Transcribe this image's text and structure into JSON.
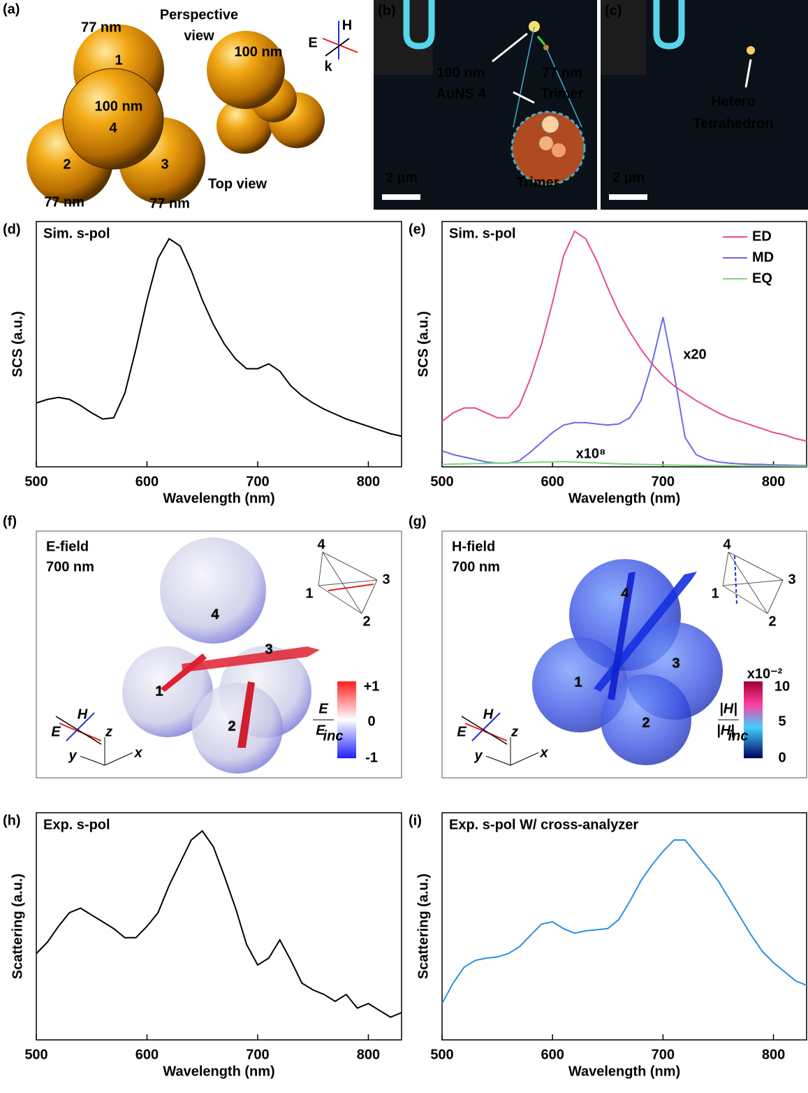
{
  "chart_data": [
    {
      "type": "line",
      "label": "(d)",
      "title": "Sim. s-pol",
      "x_label": "Wavelength (nm)",
      "y_label": "SCS (a.u.)",
      "x": [
        500,
        510,
        520,
        530,
        540,
        550,
        560,
        570,
        580,
        590,
        600,
        610,
        620,
        630,
        640,
        650,
        660,
        670,
        680,
        690,
        700,
        710,
        720,
        730,
        740,
        750,
        760,
        770,
        780,
        790,
        800,
        810,
        820,
        830
      ],
      "values": [
        0.26,
        0.275,
        0.283,
        0.275,
        0.25,
        0.22,
        0.195,
        0.2,
        0.3,
        0.48,
        0.68,
        0.85,
        0.93,
        0.9,
        0.8,
        0.68,
        0.58,
        0.5,
        0.44,
        0.4,
        0.4,
        0.42,
        0.39,
        0.33,
        0.29,
        0.26,
        0.235,
        0.215,
        0.195,
        0.18,
        0.165,
        0.15,
        0.135,
        0.125
      ],
      "color": "#000000",
      "xlim": [
        500,
        830
      ],
      "ylim": [
        0,
        1
      ],
      "xticks": [
        500,
        600,
        700,
        800
      ]
    },
    {
      "type": "line",
      "label": "(e)",
      "title": "Sim. s-pol",
      "x_label": "Wavelength (nm)",
      "y_label": "SCS (a.u.)",
      "x": [
        500,
        510,
        520,
        530,
        540,
        550,
        560,
        570,
        580,
        590,
        600,
        610,
        620,
        630,
        640,
        650,
        660,
        670,
        680,
        690,
        700,
        710,
        720,
        730,
        740,
        750,
        760,
        770,
        780,
        790,
        800,
        810,
        820,
        830
      ],
      "series": [
        {
          "name": "ED",
          "color": "#e8507a",
          "values": [
            0.185,
            0.22,
            0.24,
            0.24,
            0.22,
            0.2,
            0.2,
            0.25,
            0.36,
            0.5,
            0.67,
            0.86,
            0.96,
            0.93,
            0.84,
            0.73,
            0.63,
            0.55,
            0.48,
            0.42,
            0.37,
            0.33,
            0.3,
            0.27,
            0.245,
            0.22,
            0.2,
            0.185,
            0.17,
            0.155,
            0.14,
            0.13,
            0.115,
            0.105
          ]
        },
        {
          "name": "MD",
          "color": "#6a6ae8",
          "values": [
            0.065,
            0.05,
            0.04,
            0.03,
            0.02,
            0.015,
            0.015,
            0.025,
            0.06,
            0.1,
            0.14,
            0.17,
            0.18,
            0.18,
            0.175,
            0.17,
            0.175,
            0.2,
            0.27,
            0.42,
            0.61,
            0.38,
            0.12,
            0.05,
            0.03,
            0.02,
            0.015,
            0.012,
            0.01,
            0.01,
            0.008,
            0.007,
            0.006,
            0.005
          ]
        },
        {
          "name": "EQ",
          "color": "#7ed67e",
          "values": [
            0.01,
            0.011,
            0.012,
            0.013,
            0.014,
            0.015,
            0.016,
            0.017,
            0.018,
            0.019,
            0.02,
            0.021,
            0.02,
            0.018,
            0.016,
            0.014,
            0.012,
            0.011,
            0.01,
            0.009,
            0.008,
            0.007,
            0.006,
            0.006,
            0.005,
            0.005,
            0.005,
            0.004,
            0.004,
            0.004,
            0.004,
            0.003,
            0.003,
            0.003
          ]
        }
      ],
      "annotations": [
        {
          "text": "x20",
          "color": "#6a6ae8"
        },
        {
          "text": "x10⁸",
          "color": "#7ed67e"
        }
      ],
      "legend": "upper right",
      "xlim": [
        500,
        830
      ],
      "ylim": [
        0,
        1
      ],
      "xticks": [
        500,
        600,
        700,
        800
      ]
    },
    {
      "type": "line",
      "label": "(h)",
      "title": "Exp. s-pol",
      "x_label": "Wavelength (nm)",
      "y_label": "Scattering (a.u.)",
      "x": [
        500,
        510,
        520,
        530,
        540,
        550,
        560,
        570,
        580,
        590,
        600,
        610,
        620,
        630,
        640,
        650,
        660,
        670,
        680,
        690,
        700,
        710,
        720,
        730,
        740,
        750,
        760,
        770,
        780,
        790,
        800,
        810,
        820,
        830
      ],
      "values": [
        0.38,
        0.43,
        0.5,
        0.56,
        0.58,
        0.55,
        0.52,
        0.49,
        0.45,
        0.45,
        0.5,
        0.56,
        0.68,
        0.78,
        0.88,
        0.92,
        0.85,
        0.72,
        0.58,
        0.42,
        0.33,
        0.36,
        0.44,
        0.35,
        0.25,
        0.22,
        0.2,
        0.17,
        0.2,
        0.14,
        0.16,
        0.13,
        0.1,
        0.12
      ],
      "color": "#000000",
      "xlim": [
        500,
        830
      ],
      "ylim": [
        0,
        1
      ],
      "xticks": [
        500,
        600,
        700,
        800
      ]
    },
    {
      "type": "line",
      "label": "(i)",
      "title": "Exp. s-pol W/ cross-analyzer",
      "x_label": "Wavelength (nm)",
      "y_label": "Scattering (a.u.)",
      "x": [
        500,
        510,
        520,
        530,
        540,
        550,
        560,
        570,
        580,
        590,
        600,
        610,
        620,
        630,
        640,
        650,
        660,
        670,
        680,
        690,
        700,
        710,
        720,
        730,
        740,
        750,
        760,
        770,
        780,
        790,
        800,
        810,
        820,
        830
      ],
      "values": [
        0.16,
        0.25,
        0.32,
        0.35,
        0.36,
        0.365,
        0.38,
        0.41,
        0.46,
        0.51,
        0.52,
        0.49,
        0.47,
        0.48,
        0.485,
        0.49,
        0.53,
        0.61,
        0.7,
        0.77,
        0.83,
        0.88,
        0.88,
        0.82,
        0.76,
        0.7,
        0.62,
        0.54,
        0.46,
        0.39,
        0.34,
        0.3,
        0.26,
        0.24
      ],
      "color": "#2b8fe0",
      "xlim": [
        500,
        830
      ],
      "ylim": [
        0,
        1
      ],
      "xticks": [
        500,
        600,
        700,
        800
      ]
    }
  ],
  "panels": {
    "a": {
      "label": "(a)",
      "texts": [
        "77 nm",
        "Perspective",
        "view",
        "100 nm",
        "1",
        "100 nm",
        "4",
        "2",
        "3",
        "77 nm",
        "77 nm",
        "Top view",
        "E",
        "H",
        "k"
      ]
    },
    "b": {
      "label": "(b)",
      "texts": [
        "100 nm",
        "AuNS 4",
        "77 nm",
        "Trimer",
        "Trimer",
        "2 µm"
      ]
    },
    "c": {
      "label": "(c)",
      "texts": [
        "Hetero",
        "Tetrahedron",
        "2 µm"
      ]
    },
    "f": {
      "label": "(f)",
      "title": [
        "E-field",
        "700 nm"
      ],
      "spheres": [
        "4",
        "1",
        "3",
        "2"
      ],
      "inset": [
        "4",
        "1",
        "3",
        "2"
      ],
      "axes": [
        "H",
        "E",
        "z",
        "y",
        "x"
      ],
      "colorbar": {
        "ticks": [
          "+1",
          "0",
          "-1"
        ],
        "title": [
          "E",
          "E",
          "inc"
        ]
      }
    },
    "g": {
      "label": "(g)",
      "title": [
        "H-field",
        "700 nm"
      ],
      "spheres": [
        "4",
        "1",
        "3",
        "2"
      ],
      "inset": [
        "4",
        "1",
        "3",
        "2"
      ],
      "axes": [
        "H",
        "E",
        "z",
        "y",
        "x"
      ],
      "colorbar": {
        "ticks": [
          "10",
          "5",
          "0"
        ],
        "multiplier": "x10⁻²",
        "title": [
          "|H|",
          "|H|",
          "inc"
        ]
      }
    }
  }
}
